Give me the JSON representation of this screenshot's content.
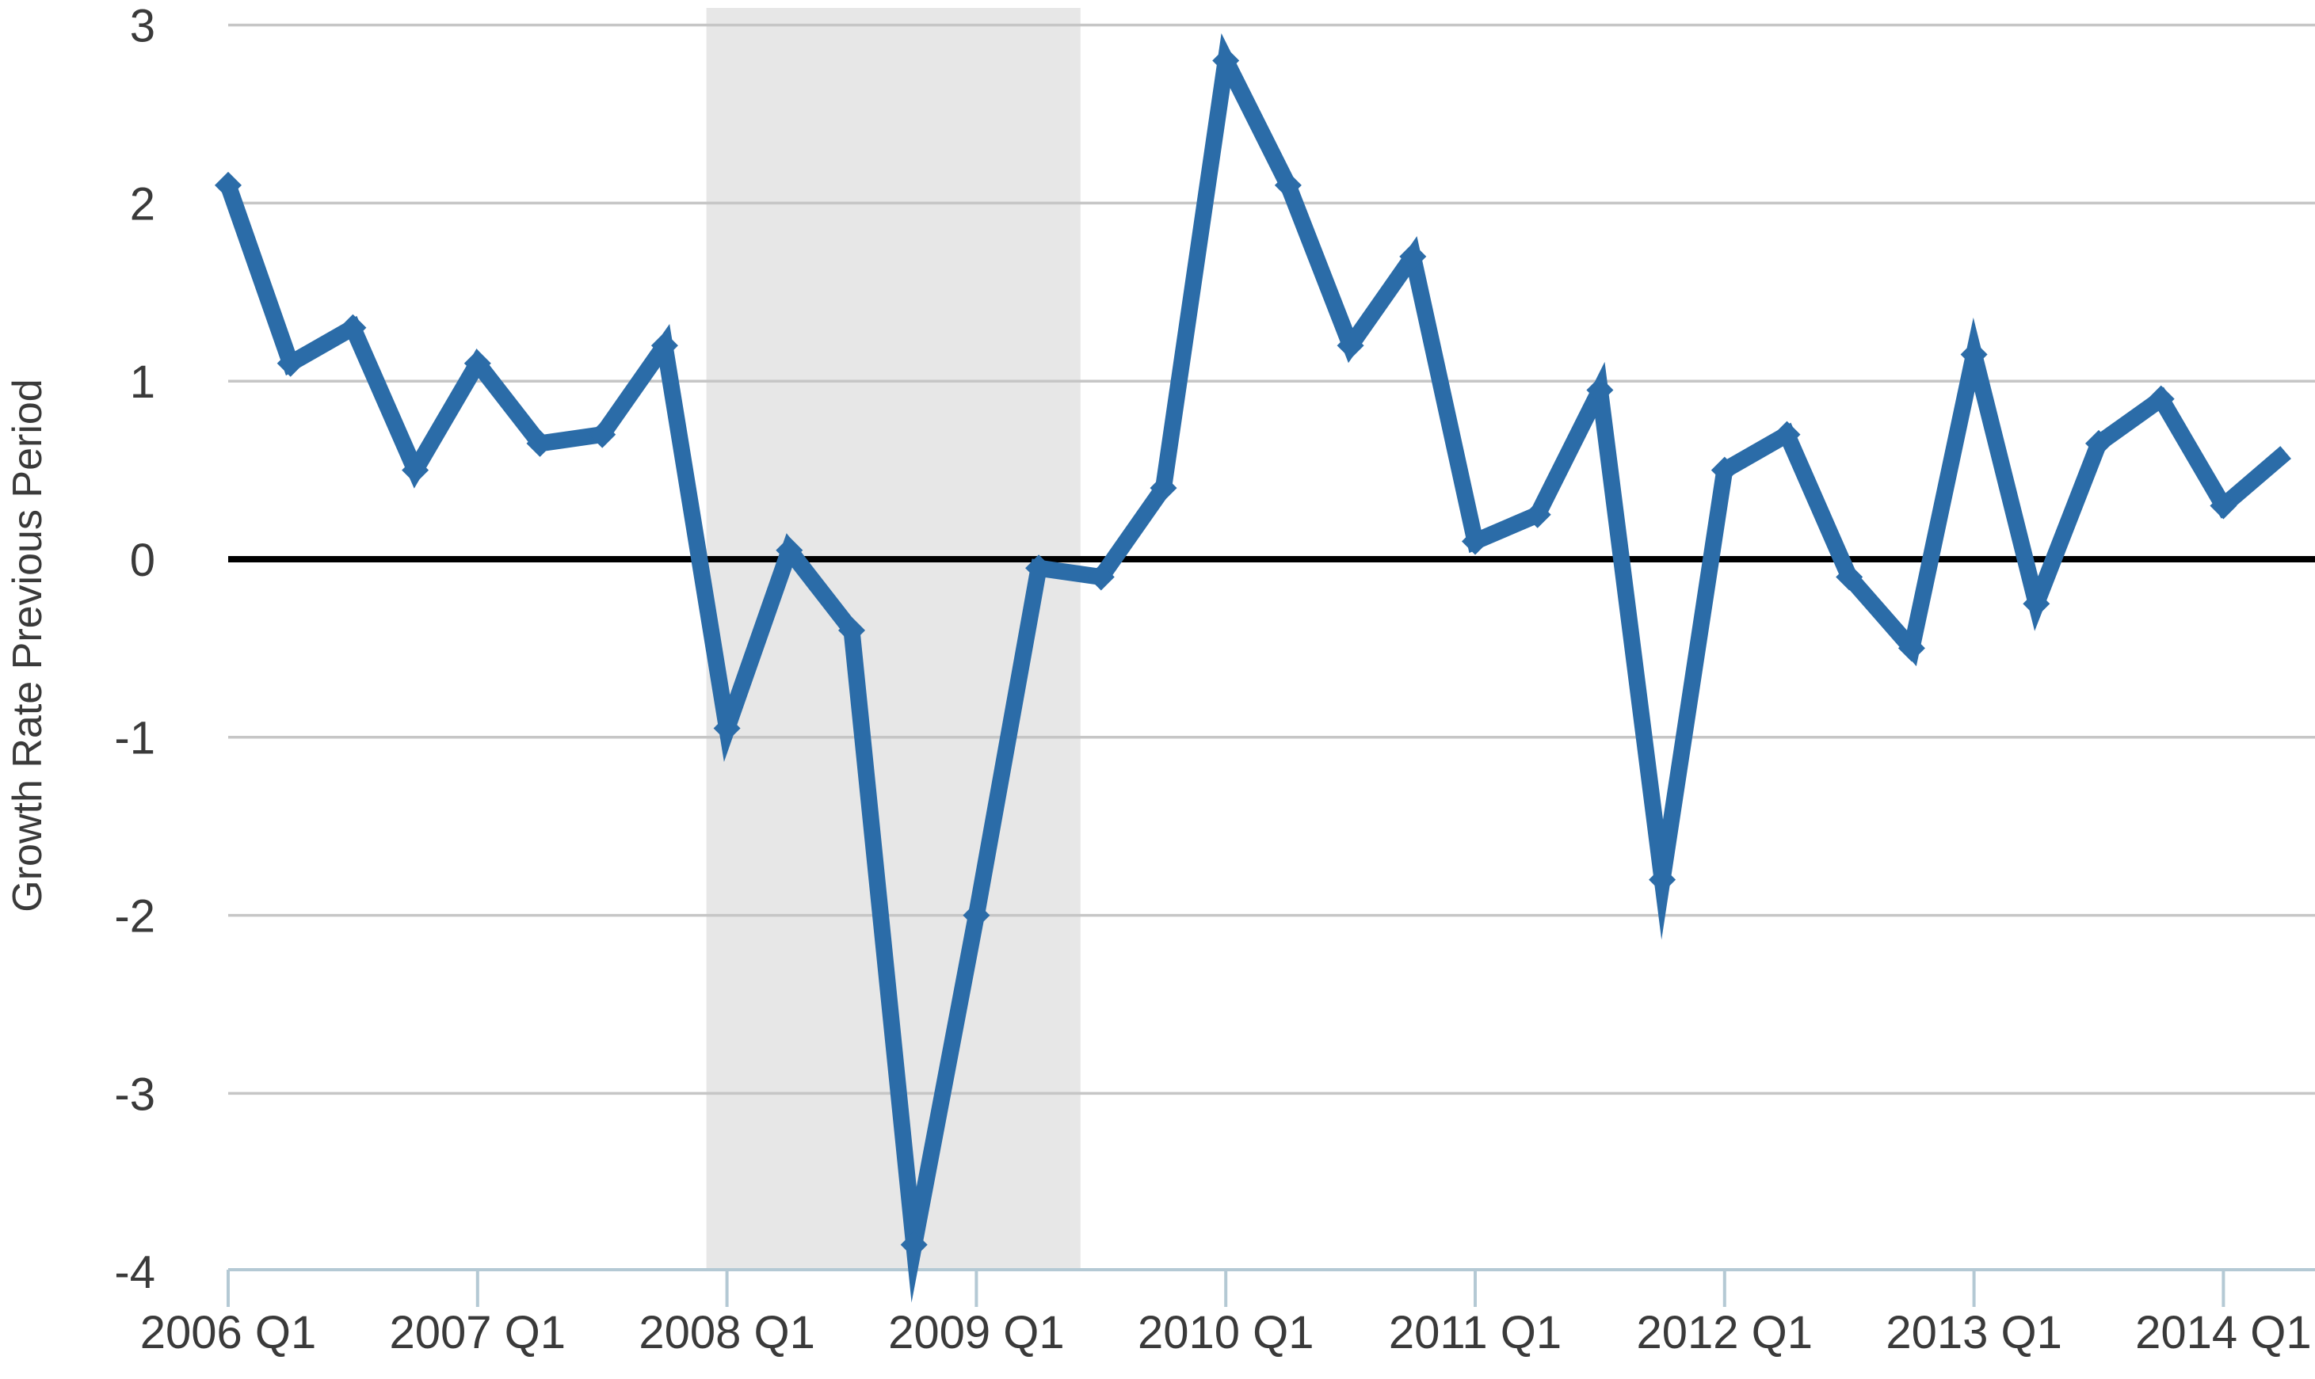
{
  "chart_data": {
    "type": "line",
    "title": "",
    "xlabel": "",
    "ylabel": "Growth Rate Previous Period",
    "categories": [
      "2006 Q1",
      "2006 Q2",
      "2006 Q3",
      "2006 Q4",
      "2007 Q1",
      "2007 Q2",
      "2007 Q3",
      "2007 Q4",
      "2008 Q1",
      "2008 Q2",
      "2008 Q3",
      "2008 Q4",
      "2009 Q1",
      "2009 Q2",
      "2009 Q3",
      "2009 Q4",
      "2010 Q1",
      "2010 Q2",
      "2010 Q3",
      "2010 Q4",
      "2011 Q1",
      "2011 Q2",
      "2011 Q3",
      "2011 Q4",
      "2012 Q1",
      "2012 Q2",
      "2012 Q3",
      "2012 Q4",
      "2013 Q1",
      "2013 Q2",
      "2013 Q3",
      "2013 Q4",
      "2014 Q1",
      "2014 Q2"
    ],
    "series": [
      {
        "name": "Growth rate previous period",
        "values": [
          2.1,
          1.1,
          1.3,
          0.5,
          1.1,
          0.65,
          0.7,
          1.2,
          -0.95,
          0.05,
          -0.4,
          -3.85,
          -2.0,
          -0.05,
          -0.1,
          0.4,
          2.8,
          2.1,
          1.2,
          1.7,
          0.1,
          0.25,
          0.95,
          -1.8,
          0.5,
          0.7,
          -0.1,
          -0.5,
          1.15,
          -0.25,
          0.65,
          0.9,
          0.3,
          0.6
        ],
        "marker": "diamond",
        "last_point_has_marker": false
      }
    ],
    "x_tick_labels": [
      "2006 Q1",
      "2007 Q1",
      "2008 Q1",
      "2009 Q1",
      "2010 Q1",
      "2011 Q1",
      "2012 Q1",
      "2013 Q1",
      "2014 Q1"
    ],
    "x_tick_indices": [
      0,
      4,
      8,
      12,
      16,
      20,
      24,
      28,
      32
    ],
    "y_ticks": [
      3,
      2,
      1,
      0,
      -1,
      -2,
      -3,
      -4
    ],
    "ylim": [
      -4,
      3
    ],
    "grid": "horizontal",
    "legend_position": "none",
    "zero_line": 0,
    "shaded_region": {
      "start_quarter_index": 7.67,
      "end_quarter_index": 13.67
    },
    "colors": {
      "line": "#2b6ca8",
      "marker": "#2b6ca8",
      "shaded_region": "#e7e7e7",
      "gridline": "#c6c6c6",
      "zero_line": "#000000",
      "axis_line": "#b4c9d4",
      "text": "#3a3a3a"
    }
  }
}
